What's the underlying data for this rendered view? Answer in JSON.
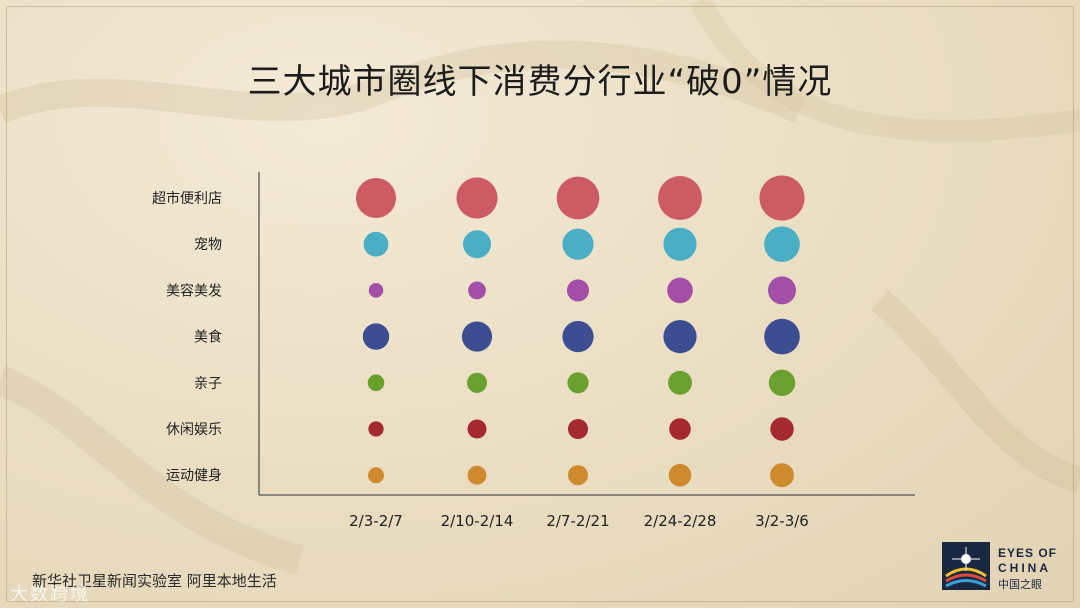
{
  "title": "三大城市圈线下消费分行业“破0”情况",
  "footer": "新华社卫星新闻实验室  阿里本地生活",
  "watermark": "大数跨境",
  "logo": {
    "line1": "EYES OF",
    "line2": "CHINA",
    "line3": "中国之眼"
  },
  "colors": {
    "超市便利店": "#cd5b63",
    "宠物": "#4aafc4",
    "美容美发": "#a34fa7",
    "美食": "#3c4d91",
    "亲子": "#6aa12e",
    "休闲娱乐": "#a52a2f",
    "运动健身": "#d08a2e"
  },
  "chart_data": {
    "type": "scatter",
    "title": "三大城市圈线下消费分行业“破0”情况",
    "categories": [
      "2/3-2/7",
      "2/10-2/14",
      "2/7-2/21",
      "2/24-2/28",
      "3/2-3/6"
    ],
    "series": [
      {
        "name": "超市便利店",
        "values": [
          76,
          80,
          86,
          91,
          96
        ]
      },
      {
        "name": "宠物",
        "values": [
          29,
          37,
          46,
          52,
          60
        ]
      },
      {
        "name": "美容美发",
        "values": [
          10,
          15,
          23,
          31,
          37
        ]
      },
      {
        "name": "美食",
        "values": [
          33,
          43,
          46,
          52,
          60
        ]
      },
      {
        "name": "亲子",
        "values": [
          13,
          19,
          21,
          27,
          33
        ]
      },
      {
        "name": "休闲娱乐",
        "values": [
          11,
          17,
          19,
          22,
          26
        ]
      },
      {
        "name": "运动健身",
        "values": [
          12,
          17,
          19,
          24,
          27
        ]
      }
    ],
    "xlabel": "",
    "ylabel": "",
    "grid": false,
    "legend": "none",
    "value_encoding": "bubble area"
  }
}
